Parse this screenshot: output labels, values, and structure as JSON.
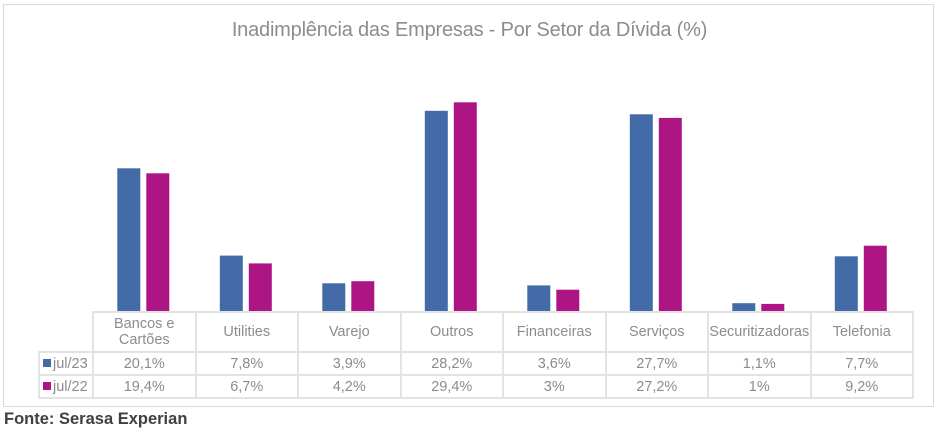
{
  "chart_data": {
    "type": "bar",
    "title": "Inadimplência das Empresas - Por Setor da Dívida (%)",
    "xlabel": "",
    "ylabel": "",
    "ylim": [
      0,
      30
    ],
    "grid": false,
    "legend": "data-table-left",
    "categories": [
      "Bancos e Cartões",
      "Utilities",
      "Varejo",
      "Outros",
      "Financeiras",
      "Serviços",
      "Securitizadoras",
      "Telefonia"
    ],
    "series": [
      {
        "name": "jul/23",
        "color": "#426BA8",
        "values": [
          20.1,
          7.8,
          3.9,
          28.2,
          3.6,
          27.7,
          1.1,
          7.7
        ],
        "labels": [
          "20,1%",
          "7,8%",
          "3,9%",
          "28,2%",
          "3,6%",
          "27,7%",
          "1,1%",
          "7,7%"
        ]
      },
      {
        "name": "jul/22",
        "color": "#AD1584",
        "values": [
          19.4,
          6.7,
          4.2,
          29.4,
          3.0,
          27.2,
          1.0,
          9.2
        ],
        "labels": [
          "19,4%",
          "6,7%",
          "4,2%",
          "29,4%",
          "3%",
          "27,2%",
          "1%",
          "9,2%"
        ]
      }
    ]
  },
  "source": "Fonte: Serasa Experian"
}
